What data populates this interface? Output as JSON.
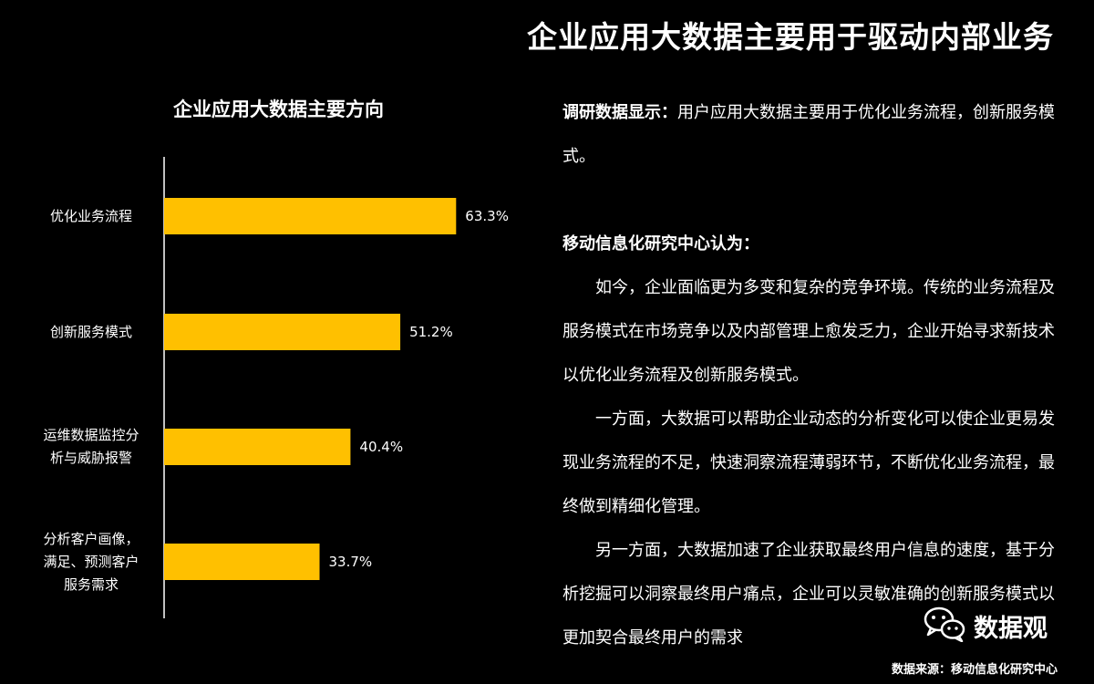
{
  "page_title": "企业应用大数据主要用于驱动内部业务",
  "chart_data": {
    "type": "bar",
    "orientation": "horizontal",
    "title": "企业应用大数据主要方向",
    "categories": [
      [
        "优化业务流程"
      ],
      [
        "创新服务模式"
      ],
      [
        "运维数据监控分",
        "析与威胁报警"
      ],
      [
        "分析客户画像，",
        "满足、预测客户",
        "服务需求"
      ]
    ],
    "values": [
      63.3,
      51.2,
      40.4,
      33.7
    ],
    "value_labels": [
      "63.3%",
      "51.2%",
      "40.4%",
      "33.7%"
    ],
    "bar_color": "#FFC000",
    "grid": false,
    "legend": "none"
  },
  "text_panel": {
    "survey_label": "调研数据显示：",
    "survey_text": "用户应用大数据主要用于优化业务流程，创新服务模式。",
    "center_heading": "移动信息化研究中心认为：",
    "paragraphs": [
      "如今，企业面临更为多变和复杂的竞争环境。传统的业务流程及服务模式在市场竞争以及内部管理上愈发乏力，企业开始寻求新技术以优化业务流程及创新服务模式。",
      "一方面，大数据可以帮助企业动态的分析变化可以使企业更易发现业务流程的不足，快速洞察流程薄弱环节，不断优化业务流程，最终做到精细化管理。",
      "另一方面，大数据加速了企业获取最终用户信息的速度，基于分析挖掘可以洞察最终用户痛点，企业可以灵敏准确的创新服务模式以更加契合最终用户的需求"
    ]
  },
  "brand": {
    "name": "数据观",
    "icon": "wechat-icon"
  },
  "source": "数据来源：移动信息化研究中心",
  "colors": {
    "background": "#000000",
    "text": "#FFFFFF",
    "accent": "#FFC000"
  }
}
